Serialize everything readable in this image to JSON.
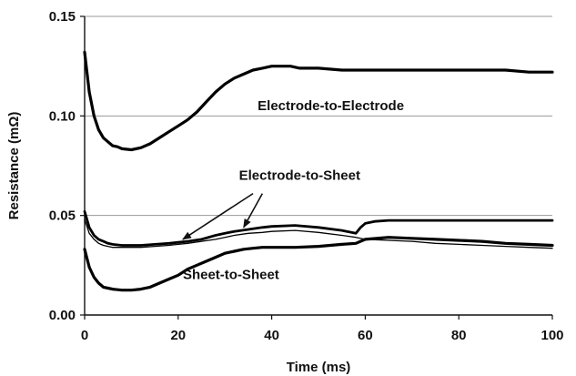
{
  "chart_data": {
    "type": "line",
    "title": "",
    "xlabel": "Time (ms)",
    "ylabel": "Resistance (mΩ)",
    "xlim": [
      0,
      100
    ],
    "ylim": [
      0,
      0.15
    ],
    "x_ticks": [
      0,
      20,
      40,
      60,
      80,
      100
    ],
    "x_tick_labels": [
      "0",
      "20",
      "40",
      "60",
      "80",
      "100"
    ],
    "y_ticks": [
      0,
      0.05,
      0.1,
      0.15
    ],
    "y_tick_labels": [
      "0.00",
      "0.05",
      "0.10",
      "0.15"
    ],
    "grid": "horizontal",
    "legend": "none",
    "line_color": "#000000",
    "series": [
      {
        "x": [
          0,
          1,
          2,
          3,
          4,
          5,
          6,
          7,
          8,
          10,
          12,
          14,
          16,
          18,
          20,
          22,
          24,
          26,
          28,
          30,
          32,
          34,
          36,
          38,
          40,
          42,
          44,
          46,
          48,
          50,
          55,
          60,
          65,
          70,
          75,
          80,
          85,
          90,
          95,
          100
        ],
        "y": [
          0.132,
          0.112,
          0.1,
          0.093,
          0.089,
          0.087,
          0.085,
          0.0845,
          0.0835,
          0.083,
          0.084,
          0.086,
          0.089,
          0.092,
          0.095,
          0.098,
          0.102,
          0.107,
          0.112,
          0.116,
          0.119,
          0.121,
          0.123,
          0.124,
          0.125,
          0.125,
          0.125,
          0.124,
          0.124,
          0.124,
          0.123,
          0.123,
          0.123,
          0.123,
          0.123,
          0.123,
          0.123,
          0.123,
          0.122,
          0.122
        ]
      },
      {
        "x": [
          0,
          1,
          2,
          3,
          4,
          5,
          6,
          8,
          10,
          12,
          15,
          18,
          20,
          22,
          25,
          28,
          30,
          32,
          35,
          38,
          40,
          45,
          50,
          55,
          58,
          59,
          60,
          62,
          65,
          70,
          75,
          80,
          85,
          90,
          95,
          100
        ],
        "y": [
          0.052,
          0.044,
          0.04,
          0.038,
          0.037,
          0.036,
          0.0355,
          0.035,
          0.035,
          0.035,
          0.0355,
          0.036,
          0.0365,
          0.037,
          0.038,
          0.04,
          0.041,
          0.042,
          0.043,
          0.044,
          0.0445,
          0.045,
          0.044,
          0.0425,
          0.041,
          0.044,
          0.046,
          0.047,
          0.0475,
          0.0475,
          0.0475,
          0.0475,
          0.0475,
          0.0475,
          0.0475,
          0.0475
        ]
      },
      {
        "x": [
          0,
          1,
          2,
          3,
          4,
          5,
          6,
          8,
          10,
          12,
          15,
          18,
          20,
          22,
          25,
          28,
          30,
          32,
          35,
          38,
          40,
          45,
          50,
          55,
          58,
          60,
          65,
          70,
          75,
          80,
          85,
          90,
          95,
          100
        ],
        "y": [
          0.048,
          0.041,
          0.038,
          0.036,
          0.035,
          0.0345,
          0.034,
          0.034,
          0.034,
          0.034,
          0.0345,
          0.035,
          0.0355,
          0.036,
          0.037,
          0.038,
          0.039,
          0.04,
          0.041,
          0.0415,
          0.042,
          0.0425,
          0.0415,
          0.04,
          0.039,
          0.038,
          0.0375,
          0.037,
          0.036,
          0.0355,
          0.035,
          0.0345,
          0.034,
          0.0335
        ]
      },
      {
        "x": [
          0,
          1,
          2,
          3,
          4,
          5,
          6,
          8,
          10,
          12,
          14,
          16,
          18,
          20,
          22,
          24,
          26,
          28,
          30,
          32,
          34,
          36,
          38,
          40,
          45,
          50,
          55,
          58,
          60,
          65,
          70,
          75,
          80,
          85,
          90,
          95,
          100
        ],
        "y": [
          0.033,
          0.024,
          0.019,
          0.016,
          0.014,
          0.0135,
          0.013,
          0.0125,
          0.0125,
          0.013,
          0.014,
          0.016,
          0.018,
          0.02,
          0.023,
          0.025,
          0.027,
          0.029,
          0.031,
          0.032,
          0.033,
          0.0335,
          0.034,
          0.034,
          0.034,
          0.0345,
          0.0355,
          0.036,
          0.038,
          0.039,
          0.0385,
          0.038,
          0.0375,
          0.037,
          0.036,
          0.0355,
          0.035
        ]
      }
    ],
    "annotations": [
      {
        "text": "Electrode-to-Electrode",
        "x": 37,
        "y": 0.103
      },
      {
        "text": "Electrode-to-Sheet",
        "x": 33,
        "y": 0.068
      },
      {
        "text": "Sheet-to-Sheet",
        "x": 21,
        "y": 0.018
      }
    ],
    "arrows": [
      {
        "from": [
          36,
          0.061
        ],
        "to": [
          21,
          0.038
        ]
      },
      {
        "from": [
          38,
          0.061
        ],
        "to": [
          34,
          0.044
        ]
      }
    ]
  }
}
